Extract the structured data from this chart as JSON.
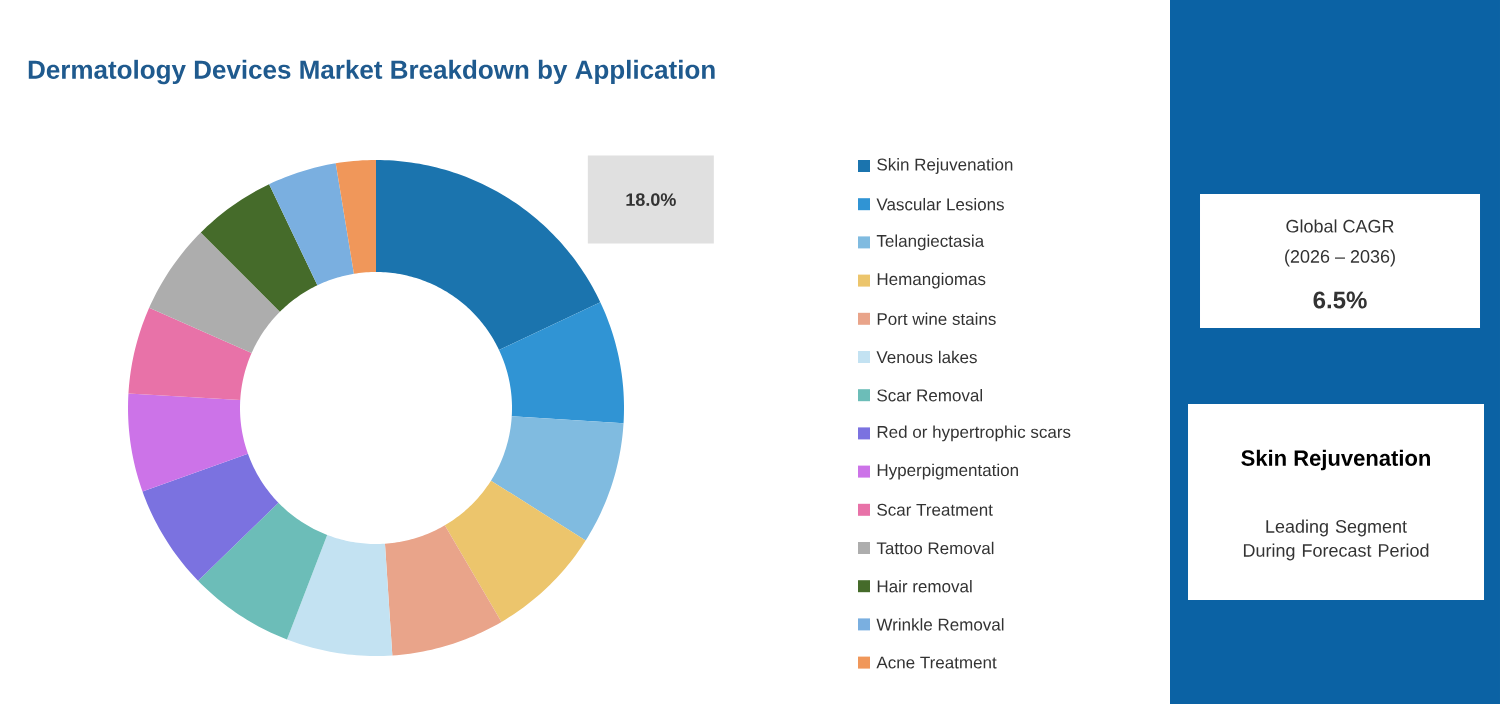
{
  "chart_data": {
    "type": "donut",
    "title": "Dermatology Devices Market Breakdown by Application",
    "categories": [
      "Skin Rejuvenation",
      "Vascular Lesions",
      "Telangiectasia",
      "Hemangiomas",
      "Port wine stains",
      "Venous lakes",
      "Scar Removal",
      "Red or hypertrophic scars",
      "Hyperpigmentation",
      "Scar Treatment",
      "Tattoo Removal",
      "Hair removal",
      "Wrinkle Removal",
      "Acne Treatment"
    ],
    "values": [
      18,
      8,
      8,
      7.6,
      7.4,
      6.9,
      6.9,
      6.8,
      6.4,
      5.7,
      5.9,
      5.4,
      4.5,
      2.6
    ],
    "colors": [
      "#1b74ae",
      "#3094d4",
      "#80bbe0",
      "#ecc56c",
      "#e9a48a",
      "#c3e2f2",
      "#6cbdb8",
      "#7b72e0",
      "#cc73e8",
      "#e872a8",
      "#adadad",
      "#456b2a",
      "#7aafe0",
      "#f0975a"
    ],
    "value_labels": [
      "18.0%",
      null,
      null,
      null,
      null,
      null,
      null,
      null,
      null,
      null,
      null,
      null,
      null,
      null
    ],
    "legend": "right",
    "annotations": [
      "Global CAGR",
      "(2026 – 2036)",
      "6.5%",
      "Skin Rejuvenation",
      "Leading Segment During Forecast Period"
    ]
  }
}
